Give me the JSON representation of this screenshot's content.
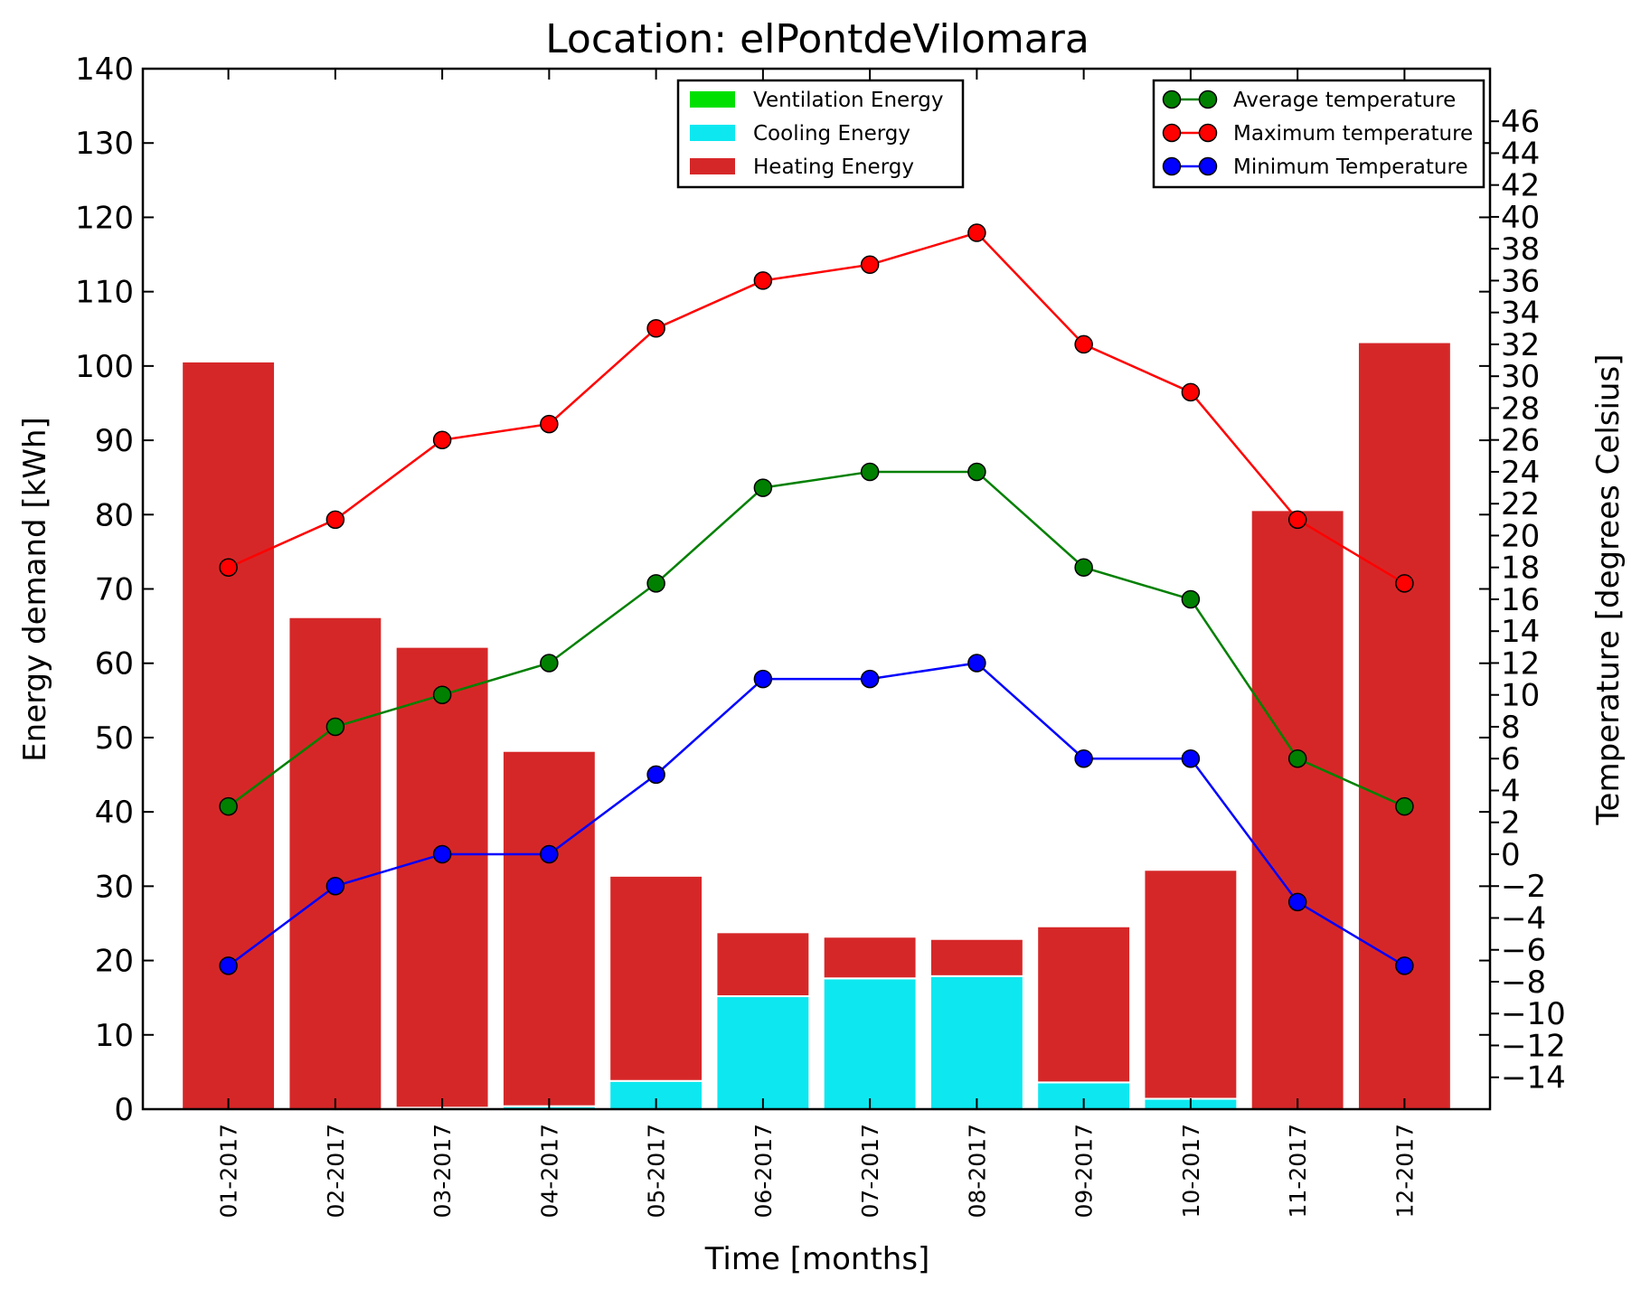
{
  "chart_data": {
    "type": "bar",
    "title": "Location: elPontdeVilomara",
    "xlabel": "Time [months]",
    "ylabel": "Energy demand [kWh]",
    "ylabel_right": "Temperature [degrees Celsius]",
    "categories": [
      "01-2017",
      "02-2017",
      "03-2017",
      "04-2017",
      "05-2017",
      "06-2017",
      "07-2017",
      "08-2017",
      "09-2017",
      "10-2017",
      "11-2017",
      "12-2017"
    ],
    "ylim": [
      0,
      140
    ],
    "yticks": [
      "0",
      "10",
      "20",
      "30",
      "40",
      "50",
      "60",
      "70",
      "80",
      "90",
      "100",
      "110",
      "120",
      "130",
      "140"
    ],
    "ylim_right": [
      -16,
      49.3
    ],
    "yticks_right": [
      "−14",
      "−12",
      "−10",
      "−8",
      "−6",
      "−4",
      "−2",
      "0",
      "2",
      "4",
      "6",
      "8",
      "10",
      "12",
      "14",
      "16",
      "18",
      "20",
      "22",
      "24",
      "26",
      "28",
      "30",
      "32",
      "34",
      "36",
      "38",
      "40",
      "42",
      "44",
      "46"
    ],
    "bar_series": [
      {
        "name": "Ventilation Energy",
        "color": "#00e000",
        "values": [
          0,
          0,
          0,
          0,
          0,
          0,
          0,
          0,
          0,
          0,
          0,
          0
        ]
      },
      {
        "name": "Cooling Energy",
        "color": "#0de8f0",
        "values": [
          0,
          0,
          0.2,
          0.4,
          3.8,
          15.2,
          17.6,
          17.9,
          3.6,
          1.4,
          0,
          0
        ]
      },
      {
        "name": "Heating Energy",
        "color": "#d62728",
        "values": [
          100.6,
          66.2,
          62.0,
          47.8,
          27.6,
          8.6,
          5.6,
          5.0,
          21.0,
          30.8,
          80.6,
          103.2
        ]
      }
    ],
    "line_series": [
      {
        "name": "Average temperature",
        "color": "#008000",
        "values": [
          3,
          8,
          10,
          12,
          17,
          23,
          24,
          24,
          18,
          16,
          6,
          3
        ]
      },
      {
        "name": "Maximum temperature",
        "color": "#ff0000",
        "values": [
          18,
          21,
          26,
          27,
          33,
          36,
          37,
          39,
          32,
          29,
          21,
          17
        ]
      },
      {
        "name": "Minimum Temperature",
        "color": "#0000ff",
        "values": [
          -7,
          -2,
          0,
          0,
          5,
          11,
          11,
          12,
          6,
          6,
          -3,
          -7
        ]
      }
    ],
    "legend_left_position": "top-center",
    "legend_right_position": "top-right",
    "grid": false
  }
}
